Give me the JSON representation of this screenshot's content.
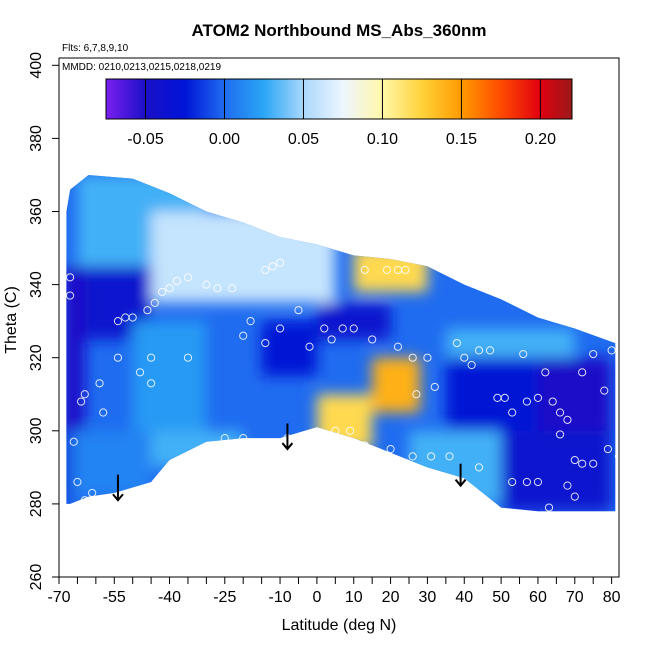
{
  "chart_data": {
    "type": "heatmap",
    "title": "ATOM2 Northbound MS_Abs_360nm",
    "subtitle_flights": "Flts: 6,7,8,9,10",
    "subtitle_dates": "MMDD: 0210,0213,0215,0218,0219",
    "xlabel": "Latitude (deg N)",
    "ylabel": "Theta (C)",
    "xlim": [
      -70,
      82
    ],
    "ylim": [
      260,
      402
    ],
    "x_ticks": [
      -70,
      -55,
      -40,
      -25,
      -10,
      0,
      10,
      20,
      30,
      40,
      50,
      60,
      70,
      80
    ],
    "x_minor_ticks": [
      -65,
      -60,
      -50,
      -45,
      -35,
      -30,
      -20,
      -15,
      -5,
      5,
      15,
      25,
      35,
      45,
      55,
      65,
      75
    ],
    "y_ticks": [
      260,
      280,
      300,
      320,
      340,
      360,
      380,
      400
    ],
    "colorbar": {
      "range": [
        -0.075,
        0.22
      ],
      "ticks": [
        -0.05,
        0.0,
        0.05,
        0.1,
        0.15,
        0.2
      ],
      "tick_labels": [
        "-0.05",
        "0.00",
        "0.05",
        "0.10",
        "0.15",
        "0.20"
      ],
      "colors": [
        {
          "v": -0.075,
          "c": "#7a1ff0"
        },
        {
          "v": -0.05,
          "c": "#1a10c8"
        },
        {
          "v": -0.025,
          "c": "#0014d8"
        },
        {
          "v": 0.0,
          "c": "#1f6cf0"
        },
        {
          "v": 0.025,
          "c": "#2aa6f5"
        },
        {
          "v": 0.05,
          "c": "#a9d8fb"
        },
        {
          "v": 0.075,
          "c": "#eef6ff"
        },
        {
          "v": 0.1,
          "c": "#fff7a8"
        },
        {
          "v": 0.125,
          "c": "#ffd23a"
        },
        {
          "v": 0.15,
          "c": "#ff9a00"
        },
        {
          "v": 0.175,
          "c": "#ff4a00"
        },
        {
          "v": 0.2,
          "c": "#e00010"
        },
        {
          "v": 0.22,
          "c": "#9a1a1a"
        }
      ]
    },
    "field": [
      {
        "x": [
          -69,
          -67
        ],
        "y": [
          280,
          300
        ],
        "v": -0.04
      },
      {
        "x": [
          -69,
          -63
        ],
        "y": [
          300,
          345
        ],
        "v": -0.05
      },
      {
        "x": [
          -63,
          -45
        ],
        "y": [
          325,
          345
        ],
        "v": -0.04
      },
      {
        "x": [
          -50,
          -30
        ],
        "y": [
          300,
          330
        ],
        "v": 0.02
      },
      {
        "x": [
          -66,
          -45
        ],
        "y": [
          282,
          300
        ],
        "v": 0.01
      },
      {
        "x": [
          -45,
          -20
        ],
        "y": [
          290,
          300
        ],
        "v": 0.03
      },
      {
        "x": [
          -65,
          -30
        ],
        "y": [
          345,
          370
        ],
        "v": 0.03
      },
      {
        "x": [
          -45,
          5
        ],
        "y": [
          335,
          360
        ],
        "v": 0.06
      },
      {
        "x": [
          -15,
          0
        ],
        "y": [
          315,
          330
        ],
        "v": -0.03
      },
      {
        "x": [
          0,
          20
        ],
        "y": [
          325,
          335
        ],
        "v": -0.04
      },
      {
        "x": [
          10,
          30
        ],
        "y": [
          338,
          350
        ],
        "v": 0.12
      },
      {
        "x": [
          0,
          15
        ],
        "y": [
          295,
          310
        ],
        "v": 0.12
      },
      {
        "x": [
          15,
          28
        ],
        "y": [
          305,
          320
        ],
        "v": 0.14
      },
      {
        "x": [
          35,
          60
        ],
        "y": [
          300,
          320
        ],
        "v": -0.03
      },
      {
        "x": [
          60,
          80
        ],
        "y": [
          300,
          320
        ],
        "v": -0.05
      },
      {
        "x": [
          50,
          80
        ],
        "y": [
          278,
          300
        ],
        "v": -0.04
      },
      {
        "x": [
          25,
          50
        ],
        "y": [
          280,
          300
        ],
        "v": 0.03
      },
      {
        "x": [
          35,
          70
        ],
        "y": [
          320,
          328
        ],
        "v": 0.03
      }
    ],
    "arrows": [
      {
        "x": -54,
        "y_top": 288,
        "y_bottom": 281
      },
      {
        "x": -8,
        "y_top": 302,
        "y_bottom": 295
      },
      {
        "x": 39,
        "y_top": 291,
        "y_bottom": 285
      }
    ],
    "sample_points": [
      [
        -67,
        342
      ],
      [
        -67,
        337
      ],
      [
        -66,
        297
      ],
      [
        -64,
        308
      ],
      [
        -63,
        310
      ],
      [
        -65,
        286
      ],
      [
        -63,
        281
      ],
      [
        -61,
        283
      ],
      [
        -59,
        313
      ],
      [
        -58,
        305
      ],
      [
        -54,
        330
      ],
      [
        -52,
        331
      ],
      [
        -50,
        331
      ],
      [
        -54,
        320
      ],
      [
        -48,
        316
      ],
      [
        -46,
        333
      ],
      [
        -44,
        335
      ],
      [
        -42,
        338
      ],
      [
        -40,
        339
      ],
      [
        -38,
        341
      ],
      [
        -35,
        342
      ],
      [
        -30,
        340
      ],
      [
        -27,
        339
      ],
      [
        -23,
        339
      ],
      [
        -20,
        326
      ],
      [
        -18,
        330
      ],
      [
        -14,
        344
      ],
      [
        -12,
        345
      ],
      [
        -10,
        346
      ],
      [
        -35,
        320
      ],
      [
        -45,
        320
      ],
      [
        -25,
        298
      ],
      [
        -14,
        324
      ],
      [
        -10,
        328
      ],
      [
        -5,
        333
      ],
      [
        -2,
        323
      ],
      [
        2,
        328
      ],
      [
        4,
        325
      ],
      [
        7,
        328
      ],
      [
        10,
        328
      ],
      [
        13,
        344
      ],
      [
        15,
        325
      ],
      [
        19,
        344
      ],
      [
        22,
        344
      ],
      [
        24,
        344
      ],
      [
        22,
        323
      ],
      [
        26,
        320
      ],
      [
        27,
        310
      ],
      [
        30,
        320
      ],
      [
        32,
        312
      ],
      [
        38,
        324
      ],
      [
        40,
        320
      ],
      [
        42,
        318
      ],
      [
        44,
        322
      ],
      [
        47,
        322
      ],
      [
        49,
        309
      ],
      [
        51,
        309
      ],
      [
        53,
        305
      ],
      [
        56,
        321
      ],
      [
        57,
        308
      ],
      [
        60,
        309
      ],
      [
        62,
        316
      ],
      [
        64,
        308
      ],
      [
        66,
        305
      ],
      [
        68,
        303
      ],
      [
        72,
        316
      ],
      [
        75,
        321
      ],
      [
        78,
        311
      ],
      [
        80,
        322
      ],
      [
        66,
        299
      ],
      [
        70,
        292
      ],
      [
        72,
        291
      ],
      [
        75,
        291
      ],
      [
        79,
        295
      ],
      [
        82,
        293
      ],
      [
        68,
        285
      ],
      [
        70,
        282
      ],
      [
        63,
        279
      ],
      [
        60,
        286
      ],
      [
        57,
        286
      ],
      [
        53,
        286
      ],
      [
        44,
        290
      ],
      [
        36,
        293
      ],
      [
        31,
        293
      ],
      [
        26,
        293
      ],
      [
        20,
        295
      ],
      [
        13,
        296
      ],
      [
        9,
        300
      ],
      [
        5,
        300
      ],
      [
        2,
        299
      ],
      [
        -1,
        298
      ],
      [
        -8,
        298
      ],
      [
        -20,
        298
      ],
      [
        -40,
        286
      ],
      [
        -45,
        313
      ]
    ],
    "data_boundary": {
      "top": [
        [
          -68,
          360
        ],
        [
          -67,
          366
        ],
        [
          -62,
          370
        ],
        [
          -50,
          369
        ],
        [
          -40,
          365
        ],
        [
          -30,
          360
        ],
        [
          -20,
          357
        ],
        [
          -10,
          353
        ],
        [
          0,
          351
        ],
        [
          10,
          348
        ],
        [
          20,
          347
        ],
        [
          30,
          345
        ],
        [
          40,
          340
        ],
        [
          50,
          336
        ],
        [
          60,
          331
        ],
        [
          70,
          328
        ],
        [
          81,
          324
        ]
      ],
      "bottom": [
        [
          81,
          278
        ],
        [
          70,
          278
        ],
        [
          60,
          278
        ],
        [
          50,
          279
        ],
        [
          45,
          283
        ],
        [
          40,
          287
        ],
        [
          30,
          290
        ],
        [
          20,
          294
        ],
        [
          10,
          298
        ],
        [
          0,
          301
        ],
        [
          -10,
          298
        ],
        [
          -20,
          298
        ],
        [
          -30,
          297
        ],
        [
          -40,
          292
        ],
        [
          -45,
          286
        ],
        [
          -55,
          283
        ],
        [
          -62,
          282
        ],
        [
          -67,
          280
        ],
        [
          -68,
          280
        ]
      ]
    }
  }
}
